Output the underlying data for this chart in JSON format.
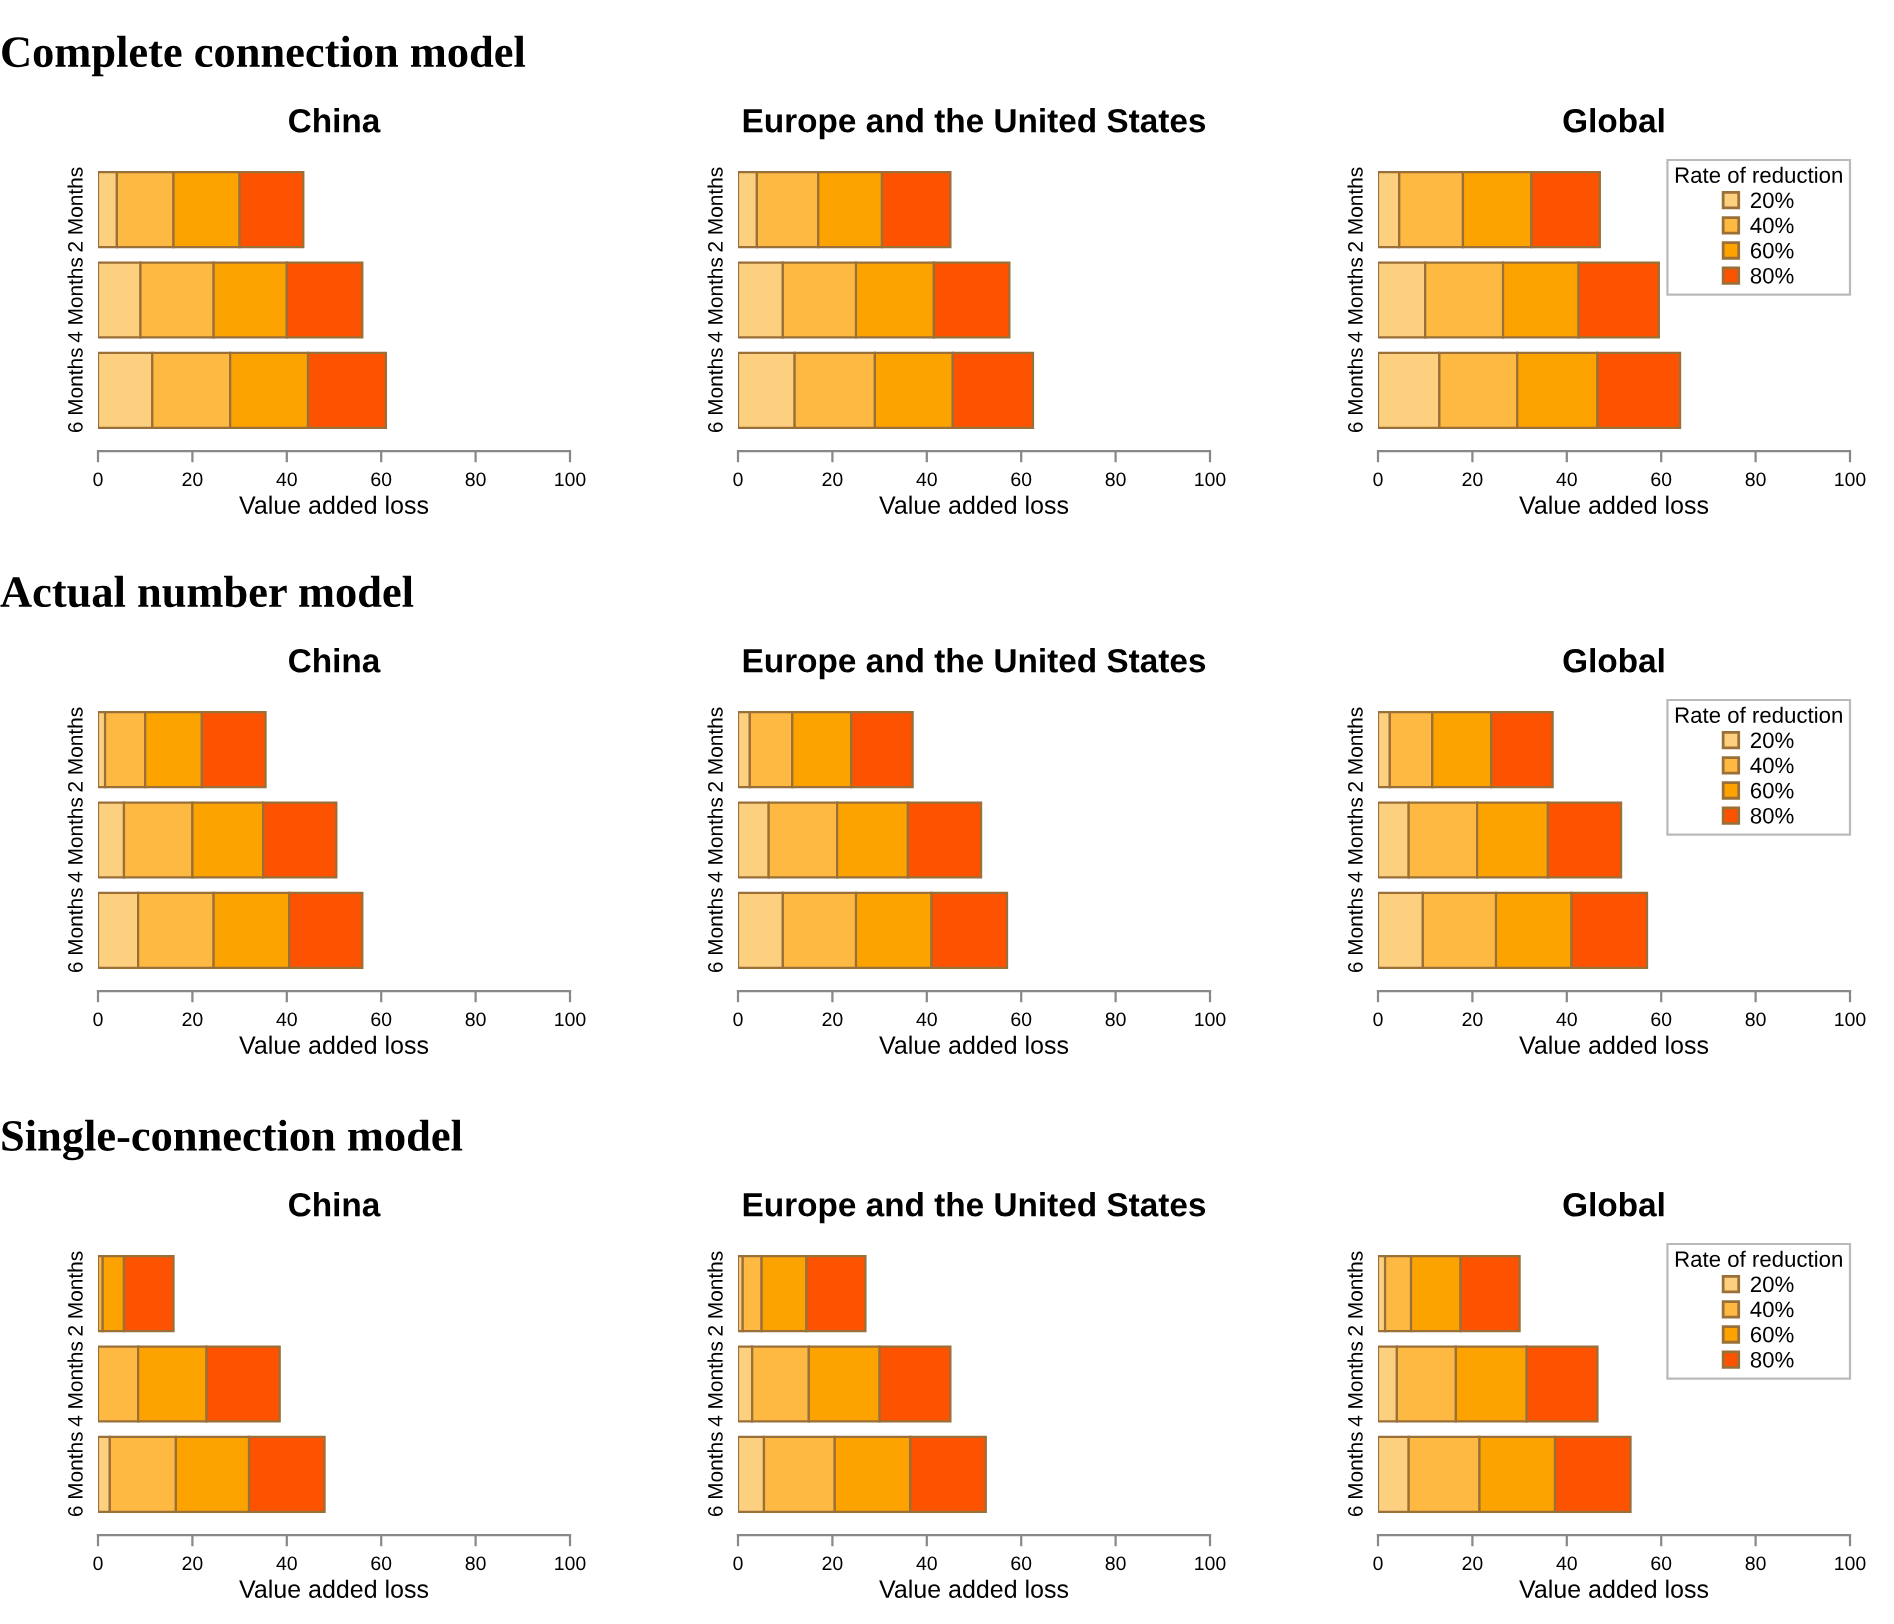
{
  "chart_data": [
    {
      "type": "bar",
      "orientation": "horizontal",
      "stacked": true,
      "title": "China",
      "xlabel": "Value added loss",
      "annotations": [
        "Complete connection model"
      ],
      "categories": [
        "2 Months",
        "4 Months",
        "6 Months"
      ],
      "xlim": [
        0,
        100
      ],
      "xticks": [
        0,
        20,
        40,
        60,
        80,
        100
      ],
      "grid": false,
      "series": [
        {
          "color": "#fdd080",
          "values": [
            4,
            9,
            11.5
          ]
        },
        {
          "color": "#fdb942",
          "values": [
            12,
            15.5,
            16.5
          ]
        },
        {
          "color": "#fca300",
          "values": [
            14,
            15.5,
            16.5
          ]
        },
        {
          "color": "#fd5300",
          "values": [
            13.5,
            16,
            16.5
          ]
        }
      ]
    },
    {
      "type": "bar",
      "orientation": "horizontal",
      "stacked": true,
      "title": "Europe and the United States",
      "xlabel": "Value added loss",
      "categories": [
        "2 Months",
        "4 Months",
        "6 Months"
      ],
      "xlim": [
        0,
        100
      ],
      "xticks": [
        0,
        20,
        40,
        60,
        80,
        100
      ],
      "grid": false,
      "series": [
        {
          "color": "#fdd080",
          "values": [
            4,
            9.5,
            12
          ]
        },
        {
          "color": "#fdb942",
          "values": [
            13,
            15.5,
            17
          ]
        },
        {
          "color": "#fca300",
          "values": [
            13.5,
            16.5,
            16.5
          ]
        },
        {
          "color": "#fd5300",
          "values": [
            14.5,
            16,
            17
          ]
        }
      ]
    },
    {
      "type": "bar",
      "orientation": "horizontal",
      "stacked": true,
      "title": "Global",
      "xlabel": "Value added loss",
      "categories": [
        "2 Months",
        "4 Months",
        "6 Months"
      ],
      "xlim": [
        0,
        100
      ],
      "xticks": [
        0,
        20,
        40,
        60,
        80,
        100
      ],
      "grid": false,
      "legend": "top right",
      "legend_title": "Rate of reduction",
      "series": [
        {
          "name": "20%",
          "color": "#fdd080",
          "values": [
            4.5,
            10,
            13
          ]
        },
        {
          "name": "40%",
          "color": "#fdb942",
          "values": [
            13.5,
            16.5,
            16.5
          ]
        },
        {
          "name": "60%",
          "color": "#fca300",
          "values": [
            14.5,
            16,
            17
          ]
        },
        {
          "name": "80%",
          "color": "#fd5300",
          "values": [
            14.5,
            17,
            17.5
          ]
        }
      ]
    },
    {
      "type": "bar",
      "orientation": "horizontal",
      "stacked": true,
      "title": "China",
      "xlabel": "Value added loss",
      "annotations": [
        "Actual number model"
      ],
      "categories": [
        "2 Months",
        "4 Months",
        "6 Months"
      ],
      "xlim": [
        0,
        100
      ],
      "xticks": [
        0,
        20,
        40,
        60,
        80,
        100
      ],
      "grid": false,
      "series": [
        {
          "color": "#fdd080",
          "values": [
            1.5,
            5.5,
            8.5
          ]
        },
        {
          "color": "#fdb942",
          "values": [
            8.5,
            14.5,
            16
          ]
        },
        {
          "color": "#fca300",
          "values": [
            12,
            15,
            16
          ]
        },
        {
          "color": "#fd5300",
          "values": [
            13.5,
            15.5,
            15.5
          ]
        }
      ]
    },
    {
      "type": "bar",
      "orientation": "horizontal",
      "stacked": true,
      "title": "Europe and the United States",
      "xlabel": "Value added loss",
      "categories": [
        "2 Months",
        "4 Months",
        "6 Months"
      ],
      "xlim": [
        0,
        100
      ],
      "xticks": [
        0,
        20,
        40,
        60,
        80,
        100
      ],
      "grid": false,
      "series": [
        {
          "color": "#fdd080",
          "values": [
            2.5,
            6.5,
            9.5
          ]
        },
        {
          "color": "#fdb942",
          "values": [
            9,
            14.5,
            15.5
          ]
        },
        {
          "color": "#fca300",
          "values": [
            12.5,
            15,
            16
          ]
        },
        {
          "color": "#fd5300",
          "values": [
            13,
            15.5,
            16
          ]
        }
      ]
    },
    {
      "type": "bar",
      "orientation": "horizontal",
      "stacked": true,
      "title": "Global",
      "xlabel": "Value added loss",
      "categories": [
        "2 Months",
        "4 Months",
        "6 Months"
      ],
      "xlim": [
        0,
        100
      ],
      "xticks": [
        0,
        20,
        40,
        60,
        80,
        100
      ],
      "grid": false,
      "legend": "top right",
      "legend_title": "Rate of reduction",
      "series": [
        {
          "name": "20%",
          "color": "#fdd080",
          "values": [
            2.5,
            6.5,
            9.5
          ]
        },
        {
          "name": "40%",
          "color": "#fdb942",
          "values": [
            9,
            14.5,
            15.5
          ]
        },
        {
          "name": "60%",
          "color": "#fca300",
          "values": [
            12.5,
            15,
            16
          ]
        },
        {
          "name": "80%",
          "color": "#fd5300",
          "values": [
            13,
            15.5,
            16
          ]
        }
      ]
    },
    {
      "type": "bar",
      "orientation": "horizontal",
      "stacked": true,
      "title": "China",
      "xlabel": "Value added loss",
      "annotations": [
        "Single-connection model"
      ],
      "categories": [
        "2 Months",
        "4 Months",
        "6 Months"
      ],
      "xlim": [
        0,
        100
      ],
      "xticks": [
        0,
        20,
        40,
        60,
        80,
        100
      ],
      "grid": false,
      "series": [
        {
          "color": "#fdd080",
          "values": [
            null,
            null,
            2.5
          ]
        },
        {
          "color": "#fdb942",
          "values": [
            1,
            8.5,
            14
          ]
        },
        {
          "color": "#fca300",
          "values": [
            4.5,
            14.5,
            15.5
          ]
        },
        {
          "color": "#fd5300",
          "values": [
            10.5,
            15.5,
            16
          ]
        }
      ]
    },
    {
      "type": "bar",
      "orientation": "horizontal",
      "stacked": true,
      "title": "Europe and the United States",
      "xlabel": "Value added loss",
      "categories": [
        "2 Months",
        "4 Months",
        "6 Months"
      ],
      "xlim": [
        0,
        100
      ],
      "xticks": [
        0,
        20,
        40,
        60,
        80,
        100
      ],
      "grid": false,
      "series": [
        {
          "color": "#fdd080",
          "values": [
            1,
            3,
            5.5
          ]
        },
        {
          "color": "#fdb942",
          "values": [
            4,
            12,
            15
          ]
        },
        {
          "color": "#fca300",
          "values": [
            9.5,
            15,
            16
          ]
        },
        {
          "color": "#fd5300",
          "values": [
            12.5,
            15,
            16
          ]
        }
      ]
    },
    {
      "type": "bar",
      "orientation": "horizontal",
      "stacked": true,
      "title": "Global",
      "xlabel": "Value added loss",
      "categories": [
        "2 Months",
        "4 Months",
        "6 Months"
      ],
      "xlim": [
        0,
        100
      ],
      "xticks": [
        0,
        20,
        40,
        60,
        80,
        100
      ],
      "grid": false,
      "legend": "top right",
      "legend_title": "Rate of reduction",
      "series": [
        {
          "name": "20%",
          "color": "#fdd080",
          "values": [
            1.5,
            4,
            6.5
          ]
        },
        {
          "name": "40%",
          "color": "#fdb942",
          "values": [
            5.5,
            12.5,
            15
          ]
        },
        {
          "name": "60%",
          "color": "#fca300",
          "values": [
            10.5,
            15,
            16
          ]
        },
        {
          "name": "80%",
          "color": "#fd5300",
          "values": [
            12.5,
            15,
            16
          ]
        }
      ]
    }
  ]
}
